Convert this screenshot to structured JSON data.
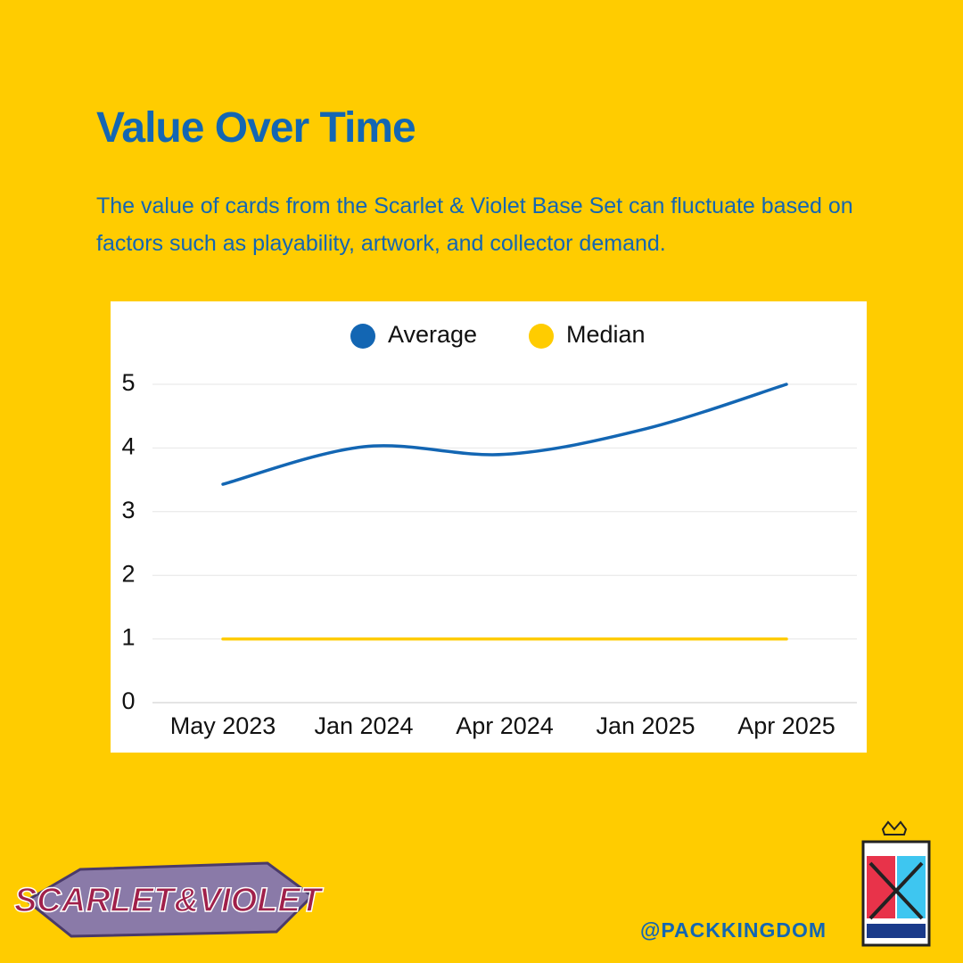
{
  "chart_data": {
    "type": "line",
    "title": "Value Over Time",
    "subtitle": "The value of cards from the Scarlet & Violet Base Set can fluctuate based on factors such as playability, artwork, and collector demand.",
    "categories": [
      "May 2023",
      "Jan 2024",
      "Apr 2024",
      "Jan 2025",
      "Apr 2025"
    ],
    "series": [
      {
        "name": "Average",
        "color": "#1366b3",
        "values": [
          3.43,
          4.02,
          3.9,
          4.3,
          5.0
        ]
      },
      {
        "name": "Median",
        "color": "#ffcc00",
        "values": [
          1,
          1,
          1,
          1,
          1
        ]
      }
    ],
    "ylim": [
      0,
      5
    ],
    "yticks": [
      0,
      1,
      2,
      3,
      4,
      5
    ],
    "grid": true,
    "legend": "top",
    "smooth": true
  },
  "logo": "SCARLET&VIOLET",
  "handle": "@PACKKINGDOM"
}
